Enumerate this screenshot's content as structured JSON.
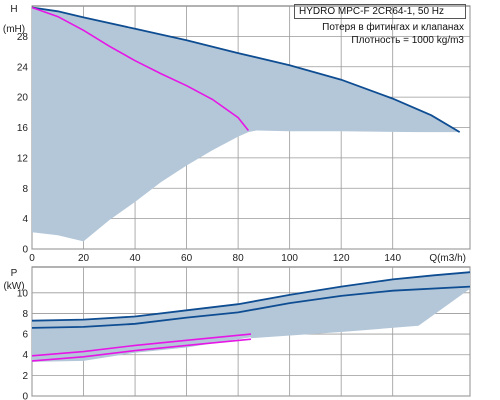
{
  "chart_data": [
    {
      "type": "area",
      "ylabel": "H",
      "yunit": "(mH)",
      "xlabel": "Q(m3/h)",
      "xlim": [
        0,
        170
      ],
      "ylim": [
        0,
        32
      ],
      "xticks": [
        0,
        20,
        40,
        60,
        80,
        100,
        120,
        140
      ],
      "yticks": [
        0,
        4,
        8,
        12,
        16,
        20,
        24,
        28
      ],
      "xtick_labels": [
        "0",
        "20",
        "40",
        "60",
        "80",
        "100",
        "120",
        "140"
      ],
      "ytick_labels": [
        "0",
        "4",
        "8",
        "12",
        "16",
        "20",
        "24",
        "28"
      ],
      "grid": true,
      "colors": {
        "band": "#b4c7d9",
        "max_curve": "#0e4d92",
        "single_pump": "#e616e6"
      },
      "band": [
        [
          0,
          31.8
        ],
        [
          10,
          31.3
        ],
        [
          20,
          30.5
        ],
        [
          40,
          29.0
        ],
        [
          60,
          27.5
        ],
        [
          80,
          25.8
        ],
        [
          100,
          24.2
        ],
        [
          120,
          22.3
        ],
        [
          140,
          19.8
        ],
        [
          155,
          17.6
        ],
        [
          166,
          15.4
        ],
        [
          150,
          15.4
        ],
        [
          120,
          15.5
        ],
        [
          100,
          15.5
        ],
        [
          87,
          15.6
        ],
        [
          84,
          15.4
        ],
        [
          80,
          14.8
        ],
        [
          70,
          13.0
        ],
        [
          60,
          11.0
        ],
        [
          50,
          8.8
        ],
        [
          40,
          6.2
        ],
        [
          30,
          3.8
        ],
        [
          20,
          1.0
        ],
        [
          10,
          1.8
        ],
        [
          0,
          2.2
        ]
      ],
      "series": [
        {
          "role": "max_curve",
          "x": [
            0,
            10,
            20,
            40,
            60,
            80,
            100,
            120,
            140,
            155,
            166
          ],
          "y": [
            31.8,
            31.3,
            30.5,
            29.0,
            27.5,
            25.8,
            24.2,
            22.3,
            19.8,
            17.6,
            15.4
          ]
        },
        {
          "role": "single_pump",
          "x": [
            0,
            10,
            20,
            30,
            40,
            50,
            60,
            70,
            80,
            84
          ],
          "y": [
            31.8,
            30.6,
            28.8,
            26.7,
            24.8,
            23.1,
            21.5,
            19.7,
            17.3,
            15.6
          ]
        }
      ]
    },
    {
      "type": "area",
      "ylabel": "P",
      "yunit": "(kW)",
      "xlim": [
        0,
        170
      ],
      "ylim": [
        0,
        12.5
      ],
      "yticks": [
        0,
        2,
        4,
        6,
        8,
        10
      ],
      "ytick_labels": [
        "0",
        "2",
        "4",
        "6",
        "8",
        "10"
      ],
      "xticks": [
        0,
        20,
        40,
        60,
        80,
        100,
        120,
        140
      ],
      "grid": true,
      "colors": {
        "band": "#b4c7d9",
        "max_curve": "#0e4d92",
        "single_pump": "#e616e6"
      },
      "band": [
        [
          0,
          7.3
        ],
        [
          20,
          7.4
        ],
        [
          40,
          7.7
        ],
        [
          60,
          8.3
        ],
        [
          80,
          8.9
        ],
        [
          100,
          9.8
        ],
        [
          120,
          10.6
        ],
        [
          140,
          11.3
        ],
        [
          156,
          11.7
        ],
        [
          170,
          12.0
        ],
        [
          170,
          10.4
        ],
        [
          150,
          6.8
        ],
        [
          120,
          6.2
        ],
        [
          85,
          5.6
        ],
        [
          85,
          5.7
        ],
        [
          60,
          4.7
        ],
        [
          40,
          4.2
        ],
        [
          20,
          3.4
        ],
        [
          0,
          3.3
        ]
      ],
      "series": [
        {
          "role": "max_curve",
          "x": [
            0,
            20,
            40,
            60,
            80,
            100,
            120,
            140,
            156,
            170
          ],
          "y": [
            7.3,
            7.4,
            7.7,
            8.3,
            8.9,
            9.8,
            10.6,
            11.3,
            11.7,
            12.0
          ]
        },
        {
          "role": "max_curve_lower",
          "x": [
            0,
            20,
            40,
            60,
            80,
            100,
            120,
            140,
            170
          ],
          "y": [
            6.6,
            6.7,
            7.0,
            7.6,
            8.1,
            9.0,
            9.7,
            10.2,
            10.6
          ]
        },
        {
          "role": "single_pump",
          "x": [
            0,
            20,
            40,
            60,
            85
          ],
          "y": [
            3.9,
            4.3,
            4.9,
            5.4,
            6.0
          ]
        },
        {
          "role": "single_pump_lower",
          "x": [
            0,
            20,
            40,
            60,
            85
          ],
          "y": [
            3.4,
            3.8,
            4.4,
            4.9,
            5.5
          ]
        }
      ]
    }
  ],
  "info": {
    "title": "HYDRO MPC-F 2CR64-1, 50 Hz",
    "line1": "Потеря в фитингах и клапанах",
    "line2": "Плотность = 1000 kg/m3"
  }
}
